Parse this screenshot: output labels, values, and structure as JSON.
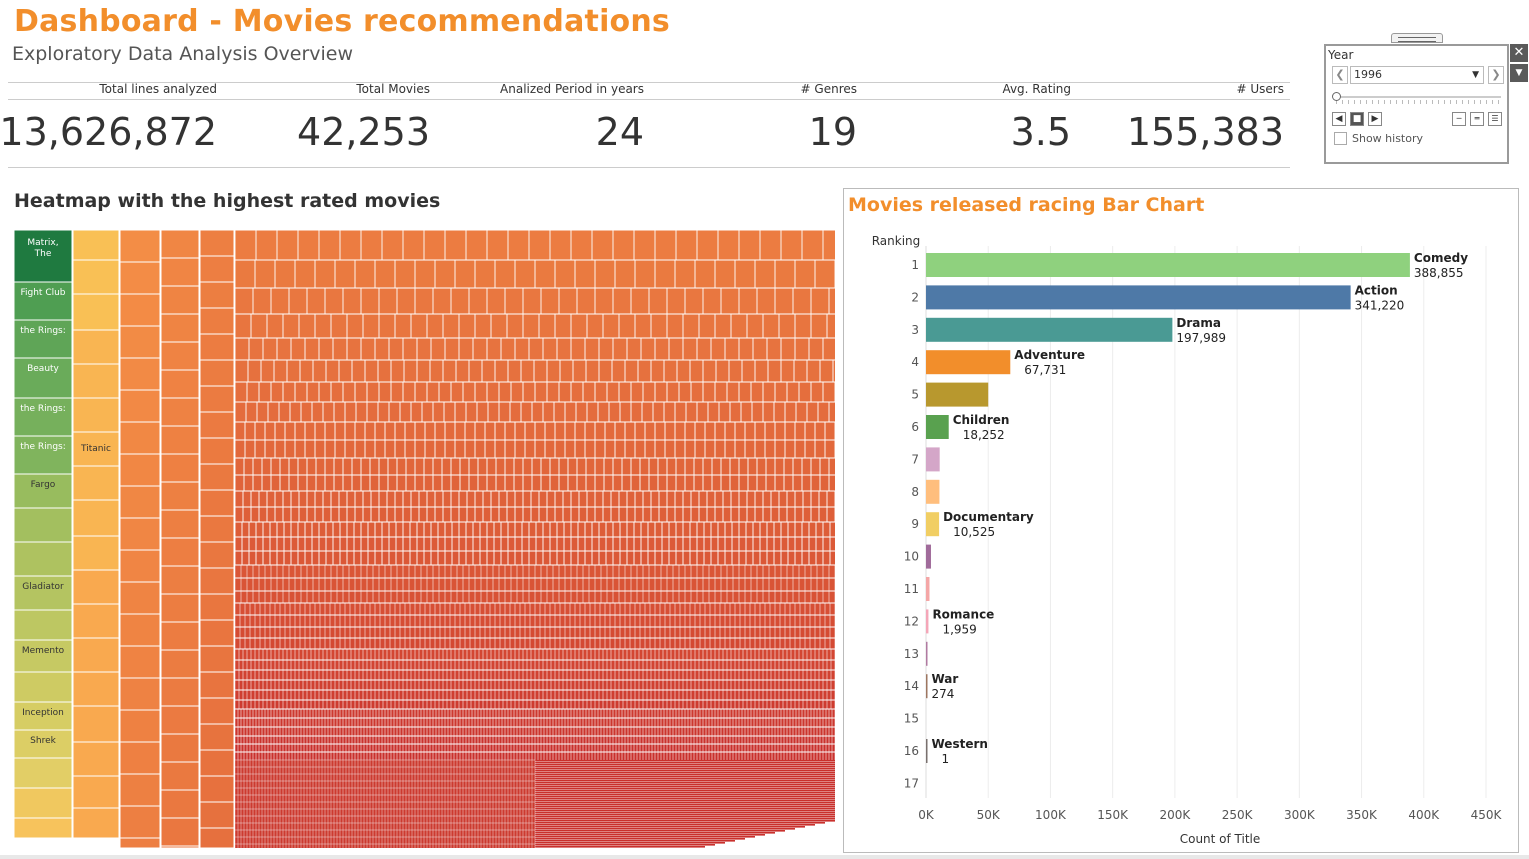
{
  "header": {
    "title": "Dashboard - Movies recommendations",
    "subtitle": "Exploratory Data Analysis Overview"
  },
  "kpis": [
    {
      "label": "Total lines analyzed",
      "value": "13,626,872"
    },
    {
      "label": "Total Movies",
      "value": "42,253"
    },
    {
      "label": "Analized Period in years",
      "value": "24"
    },
    {
      "label": "# Genres",
      "value": "19"
    },
    {
      "label": "Avg. Rating",
      "value": "3.5"
    },
    {
      "label": "# Users",
      "value": "155,383"
    }
  ],
  "heatmap": {
    "title": "Heatmap with the highest rated movies",
    "labels": [
      "Matrix, The",
      "Fight Club",
      "the Rings:",
      "Beauty",
      "the Rings:",
      "the Rings:",
      "Fargo",
      "Gladiator",
      "Memento",
      "Inception",
      "Shrek",
      "Titanic"
    ],
    "colors": {
      "high": "#1f7a40",
      "mid": "#f9c55a",
      "low": "#c9302c"
    }
  },
  "year_filter": {
    "label": "Year",
    "selected": "1996",
    "show_history_label": "Show history",
    "icons": [
      "prev-arrow-icon",
      "next-arrow-icon",
      "dropdown-caret-icon",
      "step-back-icon",
      "stop-icon",
      "play-icon",
      "speed-slow-icon",
      "speed-medium-icon",
      "speed-fast-icon",
      "close-icon",
      "menu-caret-icon"
    ]
  },
  "chart_data": {
    "type": "bar",
    "title": "Movies released racing Bar Chart",
    "ylabel": "Ranking",
    "xlabel": "Count of Title",
    "xlim": [
      0,
      450000
    ],
    "x_ticks": [
      "0K",
      "50K",
      "100K",
      "150K",
      "200K",
      "250K",
      "300K",
      "350K",
      "400K",
      "450K"
    ],
    "categories": [
      "1",
      "2",
      "3",
      "4",
      "5",
      "6",
      "7",
      "8",
      "9",
      "10",
      "11",
      "12",
      "13",
      "14",
      "15",
      "16",
      "17"
    ],
    "bars": [
      {
        "rank": "1",
        "genre": "Comedy",
        "value": 388855,
        "label": "388,855",
        "color": "#8fd17e"
      },
      {
        "rank": "2",
        "genre": "Action",
        "value": 341220,
        "label": "341,220",
        "color": "#4e79a7"
      },
      {
        "rank": "3",
        "genre": "Drama",
        "value": 197989,
        "label": "197,989",
        "color": "#4a9a94"
      },
      {
        "rank": "4",
        "genre": "Adventure",
        "value": 67731,
        "label": "67,731",
        "color": "#f28e2b"
      },
      {
        "rank": "5",
        "genre": "",
        "value": 50000,
        "label": "",
        "color": "#b8982e"
      },
      {
        "rank": "6",
        "genre": "Children",
        "value": 18252,
        "label": "18,252",
        "color": "#59a14f"
      },
      {
        "rank": "7",
        "genre": "",
        "value": 11000,
        "label": "",
        "color": "#d4a6c8"
      },
      {
        "rank": "8",
        "genre": "",
        "value": 10800,
        "label": "",
        "color": "#ffbe7d"
      },
      {
        "rank": "9",
        "genre": "Documentary",
        "value": 10525,
        "label": "10,525",
        "color": "#f1ce63"
      },
      {
        "rank": "10",
        "genre": "",
        "value": 4000,
        "label": "",
        "color": "#a06b9a"
      },
      {
        "rank": "11",
        "genre": "",
        "value": 2800,
        "label": "",
        "color": "#f4a6a6"
      },
      {
        "rank": "12",
        "genre": "Romance",
        "value": 1959,
        "label": "1,959",
        "color": "#f4a6b8"
      },
      {
        "rank": "13",
        "genre": "",
        "value": 1200,
        "label": "",
        "color": "#b07aa1"
      },
      {
        "rank": "14",
        "genre": "War",
        "value": 274,
        "label": "274",
        "color": "#9d7660"
      },
      {
        "rank": "15",
        "genre": "",
        "value": 0,
        "label": "",
        "color": "#bab0ac"
      },
      {
        "rank": "16",
        "genre": "Western",
        "value": 1,
        "label": "1",
        "color": "#79706e"
      },
      {
        "rank": "17",
        "genre": "",
        "value": 0,
        "label": "",
        "color": "#bab0ac"
      }
    ],
    "grid": true
  }
}
